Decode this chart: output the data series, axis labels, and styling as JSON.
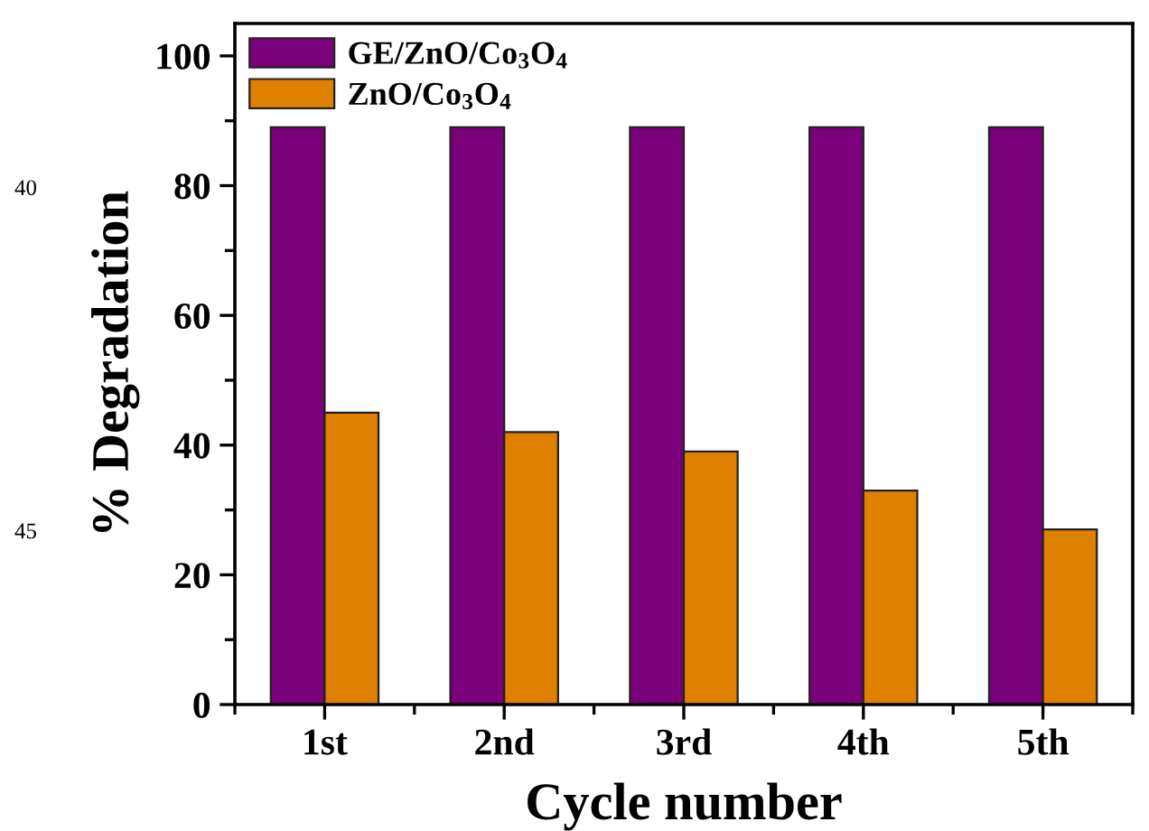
{
  "chart_data": {
    "type": "bar",
    "xlabel": "Cycle number",
    "ylabel": "% Degradation",
    "categories": [
      "1st",
      "2nd",
      "3rd",
      "4th",
      "5th"
    ],
    "series": [
      {
        "name": "GE/ZnO/Co$_{3}$O$_{4}$",
        "color": "#7b007b",
        "values": [
          89,
          89,
          89,
          89,
          89
        ]
      },
      {
        "name": "ZnO/Co$_{3}$O$_{4}$",
        "color": "#e08000",
        "values": [
          45,
          42,
          39,
          33,
          27
        ]
      }
    ],
    "ylim": [
      0,
      105
    ],
    "yticks": [
      0,
      20,
      40,
      60,
      80,
      100
    ],
    "grid": false,
    "legend": "top left",
    "annotations": [
      "40",
      "45"
    ]
  }
}
